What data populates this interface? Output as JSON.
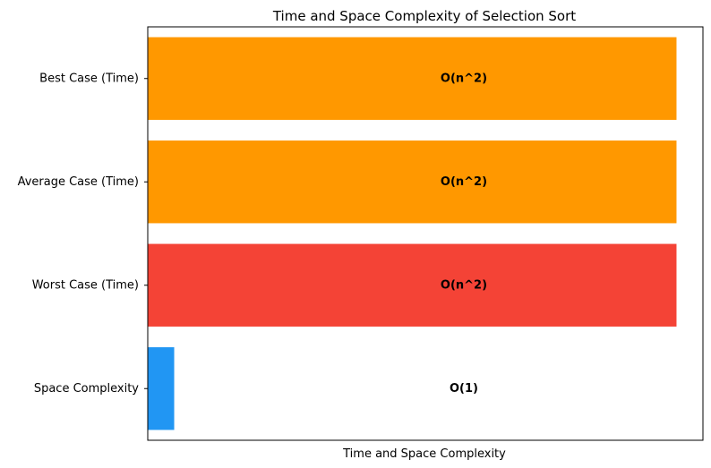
{
  "chart_data": {
    "type": "bar",
    "orientation": "horizontal",
    "title": "Time and Space Complexity of Selection Sort",
    "xlabel": "Time and Space Complexity",
    "ylabel": "",
    "xlim": [
      0,
      21
    ],
    "x_ticks_shown": false,
    "grid": false,
    "categories": [
      "Best Case (Time)",
      "Average Case (Time)",
      "Worst Case (Time)",
      "Space Complexity"
    ],
    "values": [
      20,
      20,
      20,
      1
    ],
    "data_labels": [
      "O(n^2)",
      "O(n^2)",
      "O(n^2)",
      "O(1)"
    ],
    "colors": [
      "#ff9800",
      "#ff9800",
      "#f44336",
      "#2196f3"
    ]
  }
}
